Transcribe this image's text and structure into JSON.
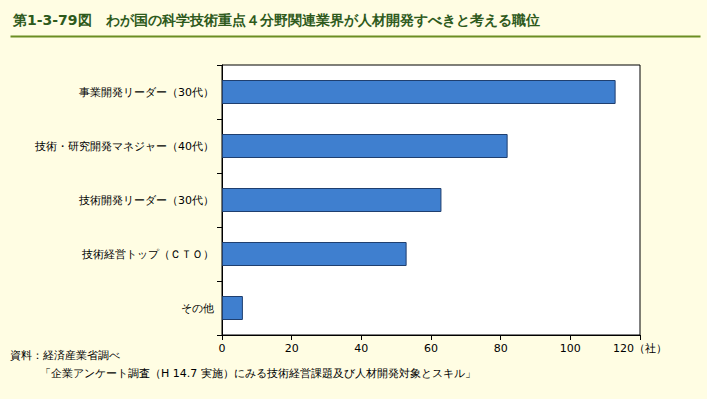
{
  "chart_data": {
    "type": "bar",
    "orientation": "horizontal",
    "title": "第1-3-79図　わが国の科学技術重点４分野関連業界が人材開発すべきと考える職位",
    "categories": [
      "事業開発リーダー（30代）",
      "技術・研究開発マネジャー（40代）",
      "技術開発リーダー（30代）",
      "技術経営トップ（ＣＴＯ）",
      "その他"
    ],
    "values": [
      113,
      82,
      63,
      53,
      6
    ],
    "color": "#3f7fcf",
    "xlim": [
      0,
      120
    ],
    "xticks": [
      0,
      20,
      40,
      60,
      80,
      100,
      {
        "value": 120,
        "label": "120（社）"
      }
    ],
    "grid": false,
    "data_labels": false,
    "annotations": [
      "資料：経済産業省調べ",
      "「企業アンケート調査（H 14.7 実施）にみる技術経営課題及び人材開発対象とスキル」"
    ]
  }
}
